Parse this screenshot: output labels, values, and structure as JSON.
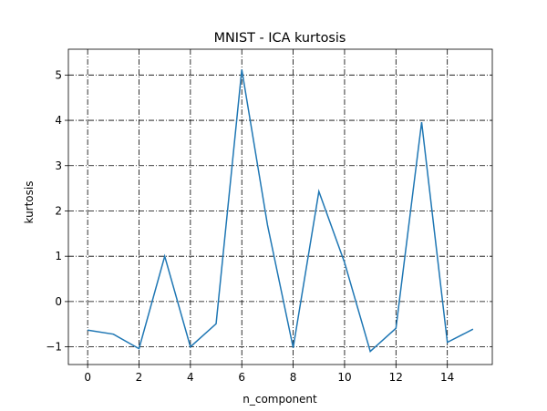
{
  "chart_data": {
    "type": "line",
    "title": "MNIST - ICA kurtosis",
    "x_label": "n_component",
    "y_label": "kurtosis",
    "x": [
      0,
      1,
      2,
      3,
      4,
      5,
      6,
      7,
      8,
      9,
      10,
      11,
      12,
      13,
      14,
      15
    ],
    "series": [
      {
        "name": "kurtosis",
        "color": "#1f77b4",
        "values": [
          -0.63,
          -0.72,
          -1.04,
          1.0,
          -1.0,
          -0.49,
          5.12,
          1.69,
          -1.02,
          2.43,
          0.86,
          -1.1,
          -0.59,
          3.96,
          -0.9,
          -0.61
        ]
      }
    ],
    "xlim": [
      -0.75,
      15.75
    ],
    "xticks": [
      0,
      2,
      4,
      6,
      8,
      10,
      12,
      14
    ],
    "ylim": [
      -1.39,
      5.57
    ],
    "yticks": [
      {
        "value": -1,
        "label": "−1"
      },
      0,
      1,
      2,
      3,
      4,
      5
    ],
    "grid": true
  }
}
